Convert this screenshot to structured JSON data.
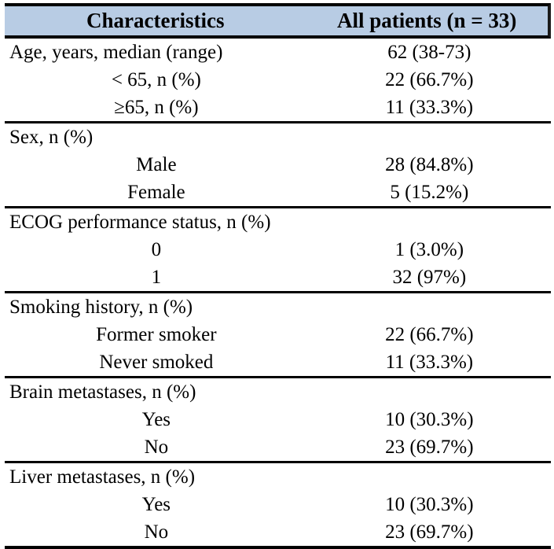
{
  "table": {
    "header": {
      "col1": "Characteristics",
      "col2": "All patients (n = 33)",
      "background_color": "#b8cce4",
      "border_color": "#000000"
    },
    "sections": [
      {
        "rows": [
          {
            "label": "Age, years, median (range)",
            "value": "62 (38-73)",
            "indent": false
          },
          {
            "label": "< 65, n (%)",
            "value": "22 (66.7%)",
            "indent": true
          },
          {
            "label": "≥65, n (%)",
            "value": "11 (33.3%)",
            "indent": true
          }
        ]
      },
      {
        "rows": [
          {
            "label": "Sex, n (%)",
            "value": "",
            "indent": false
          },
          {
            "label": "Male",
            "value": "28 (84.8%)",
            "indent": true
          },
          {
            "label": "Female",
            "value": "5 (15.2%)",
            "indent": true
          }
        ]
      },
      {
        "rows": [
          {
            "label": "ECOG performance status, n (%)",
            "value": "",
            "indent": false
          },
          {
            "label": "0",
            "value": "1 (3.0%)",
            "indent": true
          },
          {
            "label": "1",
            "value": "32 (97%)",
            "indent": true
          }
        ]
      },
      {
        "rows": [
          {
            "label": "Smoking history, n (%)",
            "value": "",
            "indent": false
          },
          {
            "label": "Former smoker",
            "value": "22 (66.7%)",
            "indent": true
          },
          {
            "label": "Never smoked",
            "value": "11 (33.3%)",
            "indent": true
          }
        ]
      },
      {
        "rows": [
          {
            "label": "Brain metastases, n (%)",
            "value": "",
            "indent": false
          },
          {
            "label": "Yes",
            "value": "10 (30.3%)",
            "indent": true
          },
          {
            "label": "No",
            "value": "23 (69.7%)",
            "indent": true
          }
        ]
      },
      {
        "rows": [
          {
            "label": "Liver metastases, n (%)",
            "value": "",
            "indent": false
          },
          {
            "label": "Yes",
            "value": "10 (30.3%)",
            "indent": true
          },
          {
            "label": "No",
            "value": "23 (69.7%)",
            "indent": true
          }
        ]
      }
    ]
  }
}
